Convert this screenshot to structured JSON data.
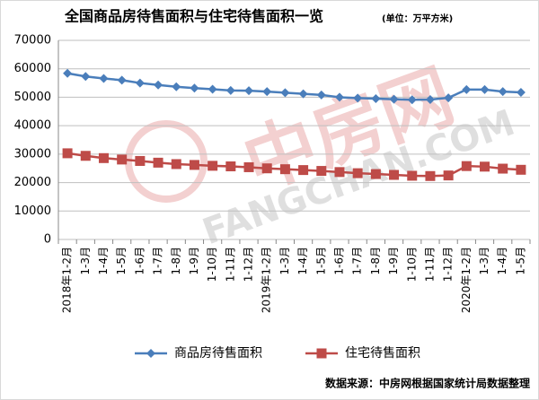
{
  "chart_data": {
    "type": "line",
    "title": "全国商品房待售面积与住宅待售面积一览",
    "subtitle": "(单位：万平方米)",
    "source": "数据来源：中房网根据国家统计局数据整理",
    "watermark": [
      "中房网",
      "FANGCHAN.COM"
    ],
    "categories": [
      "2018年1-2月",
      "1-3月",
      "1-4月",
      "1-5月",
      "1-6月",
      "1-7月",
      "1-8月",
      "1-9月",
      "1-10月",
      "1-11月",
      "1-12月",
      "2019年1-2月",
      "1-3月",
      "1-4月",
      "1-5月",
      "1-6月",
      "1-7月",
      "1-8月",
      "1-9月",
      "1-10月",
      "1-11月",
      "1-12月",
      "2020年1-2月",
      "1-3月",
      "1-4月",
      "1-5月"
    ],
    "series": [
      {
        "name": "商品房待售面积",
        "color": "#4a7ebb",
        "marker": "diamond",
        "values": [
          58400,
          57300,
          56600,
          56000,
          55000,
          54300,
          53700,
          53200,
          52800,
          52400,
          52300,
          52000,
          51600,
          51200,
          50800,
          50000,
          49700,
          49500,
          49300,
          49100,
          49200,
          49800,
          52700,
          52700,
          52000,
          51700
        ]
      },
      {
        "name": "住宅待售面积",
        "color": "#be4b48",
        "marker": "square",
        "values": [
          30300,
          29400,
          28600,
          28100,
          27600,
          27000,
          26500,
          26200,
          25900,
          25700,
          25400,
          25000,
          24700,
          24400,
          24100,
          23700,
          23300,
          23000,
          22700,
          22400,
          22300,
          22500,
          25800,
          25600,
          24900,
          24500
        ]
      }
    ],
    "ylim": [
      0,
      70000
    ],
    "yticks": [
      0,
      10000,
      20000,
      30000,
      40000,
      50000,
      60000,
      70000
    ],
    "grid": true
  }
}
